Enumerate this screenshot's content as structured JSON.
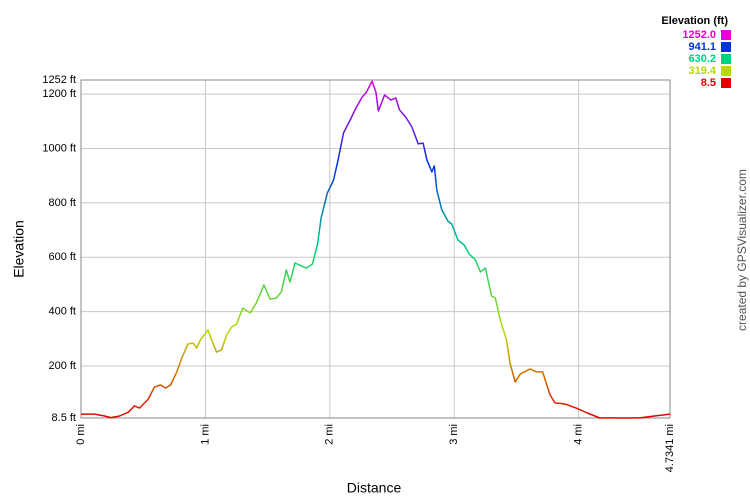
{
  "chart_data": {
    "type": "line",
    "xlabel": "Distance",
    "ylabel": "Elevation",
    "credit": "created by GPSVisualizer.com",
    "xlim": [
      0,
      4.7341
    ],
    "ylim": [
      8.5,
      1252
    ],
    "xticks": [
      {
        "value": 0,
        "label": "0 mi"
      },
      {
        "value": 1,
        "label": "1 mi"
      },
      {
        "value": 2,
        "label": "2 mi"
      },
      {
        "value": 3,
        "label": "3 mi"
      },
      {
        "value": 4,
        "label": "4 mi"
      },
      {
        "value": 4.7341,
        "label": "4.7341 mi"
      }
    ],
    "yticks": [
      {
        "value": 8.5,
        "label": "8.5 ft"
      },
      {
        "value": 200,
        "label": "200 ft"
      },
      {
        "value": 400,
        "label": "400 ft"
      },
      {
        "value": 600,
        "label": "600 ft"
      },
      {
        "value": 800,
        "label": "800 ft"
      },
      {
        "value": 1000,
        "label": "1000 ft"
      },
      {
        "value": 1200,
        "label": "1200 ft"
      },
      {
        "value": 1252,
        "label": "1252 ft"
      }
    ],
    "grid": true,
    "legend": {
      "title": "Elevation (ft)",
      "position": "top-right",
      "items": [
        {
          "value": 1252.0,
          "label": "1252.0",
          "color": "#e000e0"
        },
        {
          "value": 941.1,
          "label": "941.1",
          "color": "#0030e0"
        },
        {
          "value": 630.2,
          "label": "630.2",
          "color": "#00d080"
        },
        {
          "value": 319.4,
          "label": "319.4",
          "color": "#b8d800"
        },
        {
          "value": 8.5,
          "label": "8.5",
          "color": "#e00000"
        }
      ]
    },
    "x": [
      0,
      0.11,
      0.19,
      0.24,
      0.31,
      0.38,
      0.43,
      0.47,
      0.54,
      0.59,
      0.64,
      0.68,
      0.72,
      0.77,
      0.81,
      0.86,
      0.9,
      0.93,
      0.96,
      1.02,
      1.05,
      1.09,
      1.13,
      1.17,
      1.21,
      1.25,
      1.3,
      1.36,
      1.41,
      1.47,
      1.52,
      1.57,
      1.61,
      1.65,
      1.68,
      1.72,
      1.77,
      1.81,
      1.86,
      1.9,
      1.93,
      1.98,
      2.03,
      2.07,
      2.11,
      2.16,
      2.21,
      2.26,
      2.29,
      2.32,
      2.34,
      2.37,
      2.39,
      2.44,
      2.49,
      2.53,
      2.56,
      2.61,
      2.66,
      2.71,
      2.75,
      2.78,
      2.82,
      2.84,
      2.86,
      2.9,
      2.95,
      2.98,
      3.03,
      3.08,
      3.12,
      3.17,
      3.21,
      3.25,
      3.3,
      3.33,
      3.37,
      3.42,
      3.45,
      3.49,
      3.53,
      3.61,
      3.66,
      3.71,
      3.77,
      3.81,
      3.89,
      3.98,
      4.07,
      4.17,
      4.25,
      4.37,
      4.49,
      4.61,
      4.7341
    ],
    "values": [
      23,
      23,
      16,
      10,
      16,
      30,
      53,
      45,
      78,
      122,
      130,
      119,
      130,
      178,
      229,
      281,
      284,
      266,
      296,
      332,
      296,
      251,
      259,
      314,
      343,
      354,
      413,
      395,
      432,
      498,
      446,
      450,
      472,
      553,
      509,
      579,
      568,
      560,
      575,
      645,
      744,
      836,
      884,
      965,
      1057,
      1101,
      1149,
      1190,
      1204,
      1230,
      1248,
      1208,
      1138,
      1197,
      1178,
      1186,
      1142,
      1116,
      1079,
      1017,
      1020,
      958,
      914,
      936,
      847,
      774,
      733,
      722,
      663,
      645,
      612,
      590,
      546,
      560,
      457,
      450,
      369,
      296,
      207,
      141,
      170,
      189,
      178,
      178,
      93,
      64,
      60,
      45,
      27,
      8.5,
      9,
      8.5,
      9,
      16,
      23
    ]
  }
}
